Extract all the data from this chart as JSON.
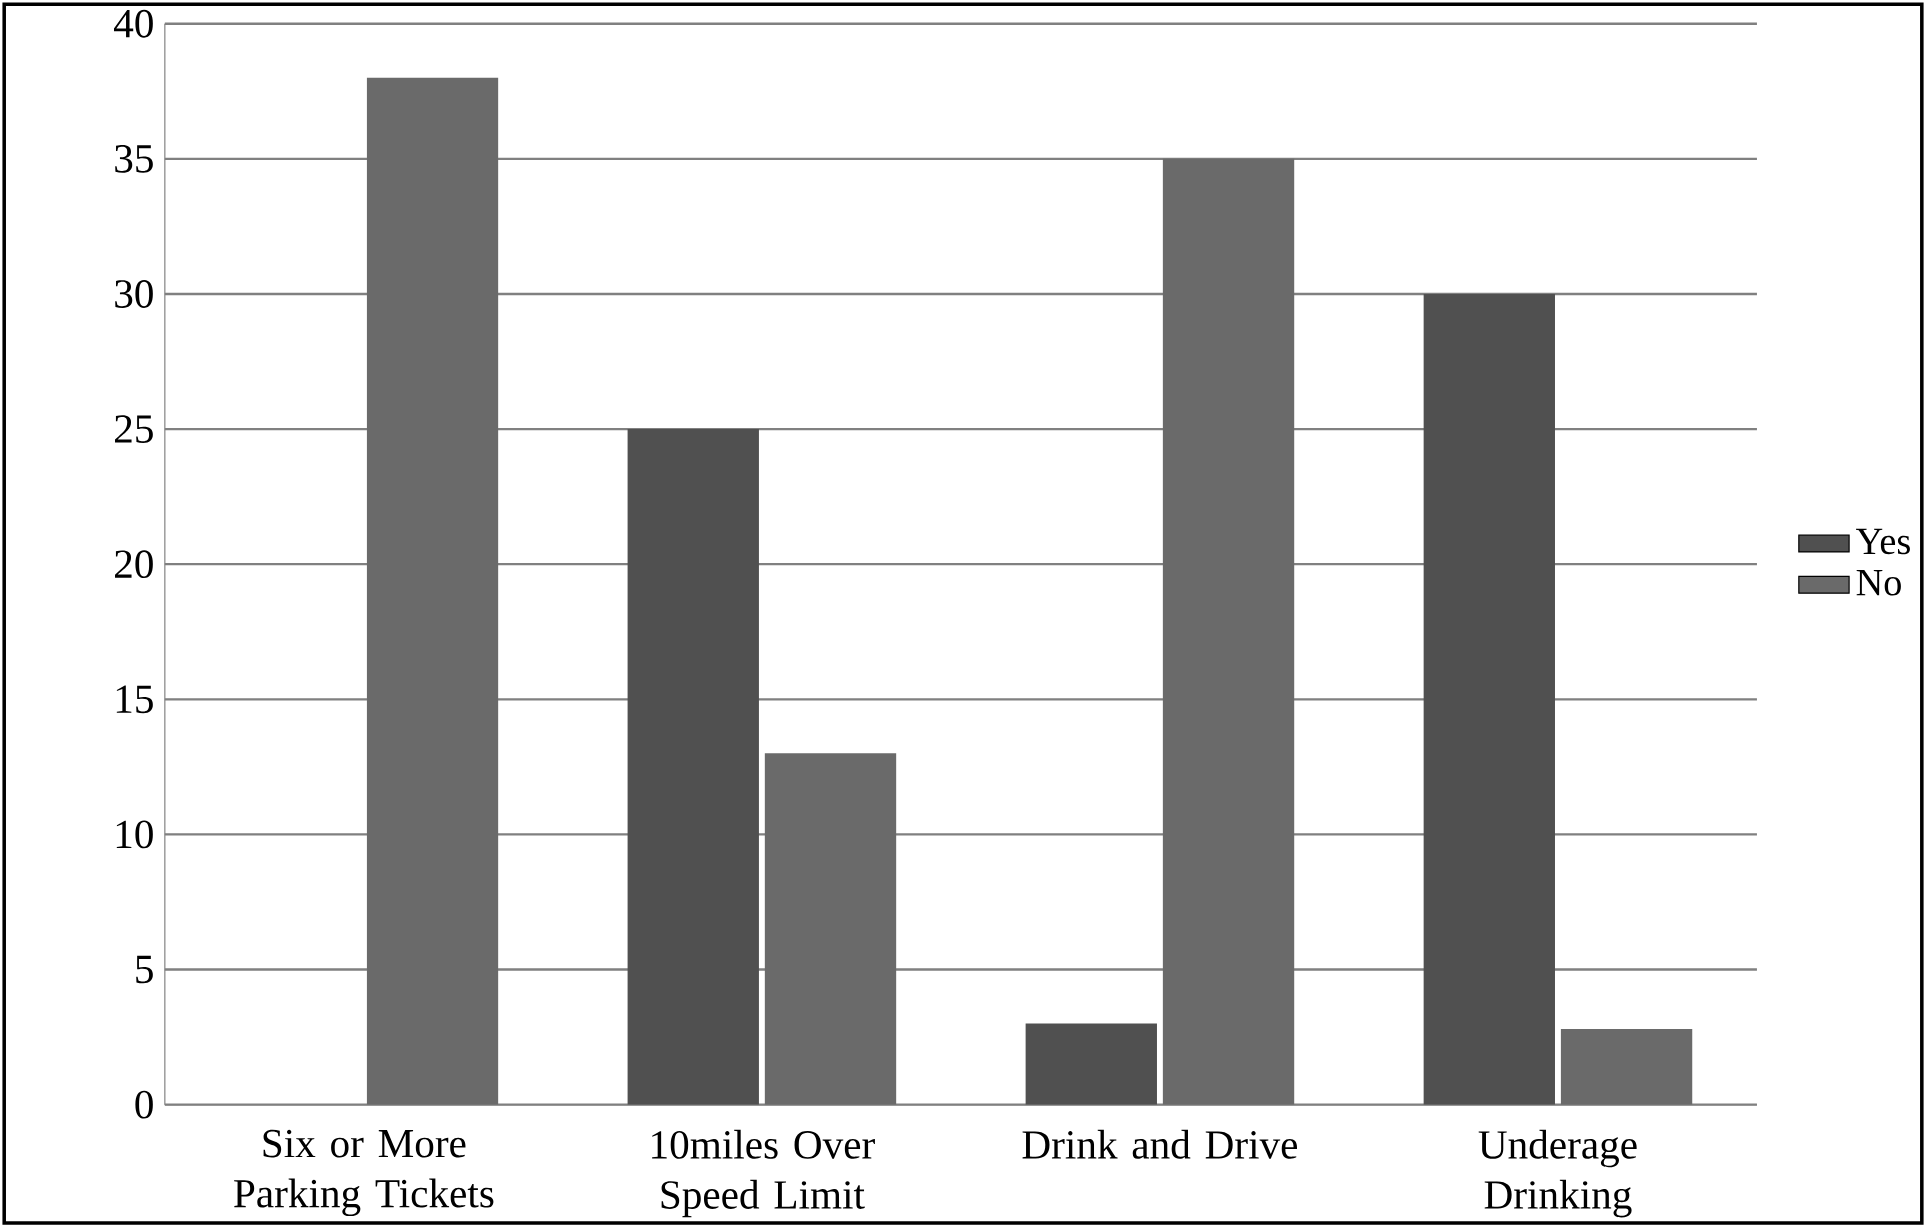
{
  "chart_data": {
    "type": "bar",
    "categories": [
      "Six or More Parking Tickets",
      "10miles Over Speed Limit",
      "Drink and Drive",
      "Underage Drinking"
    ],
    "series": [
      {
        "name": "Yes",
        "color": "#505050",
        "values": [
          0,
          25,
          3,
          30
        ]
      },
      {
        "name": "No",
        "color": "#6a6a6a",
        "values": [
          38,
          13,
          35,
          2.8
        ]
      }
    ],
    "ylim": [
      0,
      40
    ],
    "yticks": [
      0,
      5,
      10,
      15,
      20,
      25,
      30,
      35,
      40
    ],
    "grid": "y",
    "legend": "right"
  }
}
